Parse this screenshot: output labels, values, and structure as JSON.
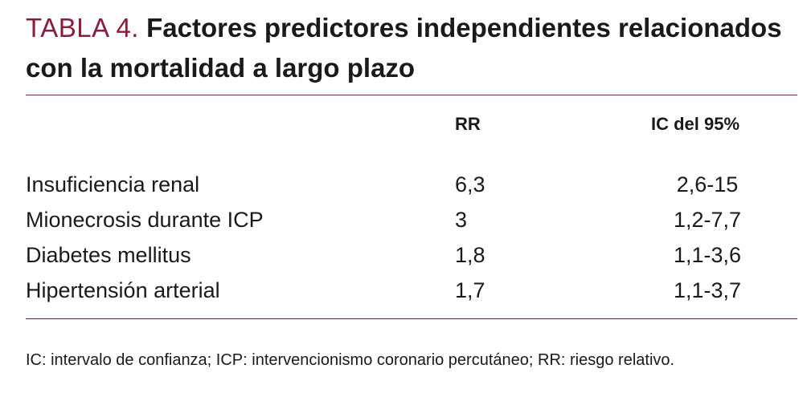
{
  "title": {
    "label": "TABLA 4.",
    "text": "Factores predictores independientes relacionados con la mortalidad a largo plazo"
  },
  "headers": {
    "rr": "RR",
    "ic": "IC del 95%"
  },
  "rows": [
    {
      "factor": "Insuficiencia renal",
      "rr": "6,3",
      "ic": "2,6-15"
    },
    {
      "factor": "Mionecrosis durante ICP",
      "rr": "3",
      "ic": "1,2-7,7"
    },
    {
      "factor": "Diabetes mellitus",
      "rr": "1,8",
      "ic": "1,1-3,6"
    },
    {
      "factor": "Hipertensión arterial",
      "rr": "1,7",
      "ic": "1,1-3,7"
    }
  ],
  "footnote": "IC: intervalo de confianza; ICP: intervencionismo coronario percutáneo; RR: riesgo relativo.",
  "colors": {
    "accent": "#8a1d3c",
    "text": "#1a1a1a"
  }
}
